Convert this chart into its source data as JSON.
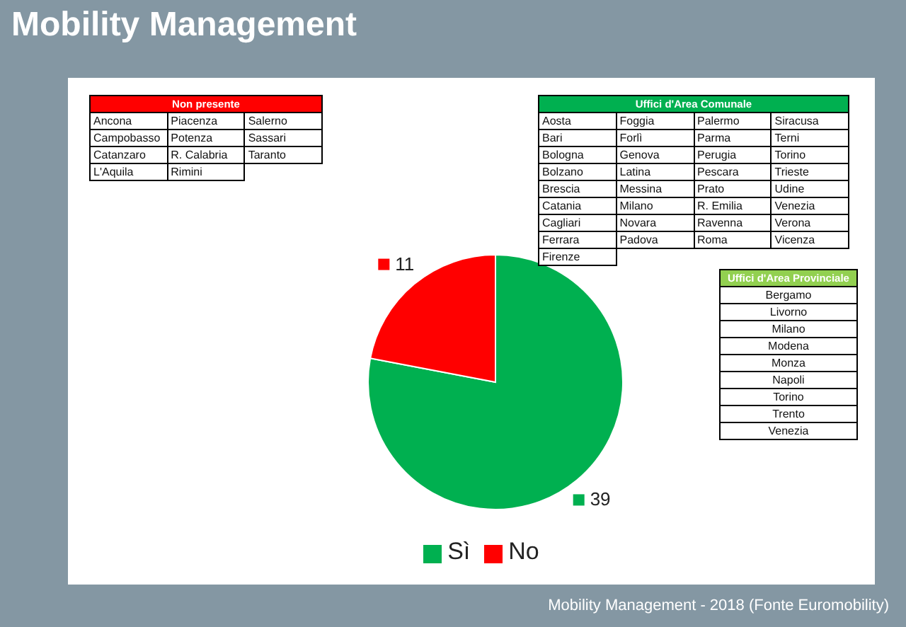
{
  "chart_data": [
    {
      "type": "pie",
      "title": "Mobility Management",
      "categories": [
        "Sì",
        "No"
      ],
      "values": [
        39,
        11
      ],
      "colors": [
        "#00b050",
        "#ff0000"
      ],
      "data_labels": true,
      "legend": "bottom",
      "annotations": [
        "Mobility Management - 2018 (Fonte Euromobility)"
      ]
    },
    {
      "type": "other",
      "title": "Non presente",
      "annotations": [
        "Ancona",
        "Piacenza",
        "Salerno",
        "Campobasso",
        "Potenza",
        "Sassari",
        "Catanzaro",
        "R. Calabria",
        "Taranto",
        "L'Aquila",
        "Rimini"
      ]
    },
    {
      "type": "other",
      "title": "Uffici d'Area Comunale",
      "annotations": [
        "Aosta",
        "Foggia",
        "Palermo",
        "Siracusa",
        "Bari",
        "Forlì",
        "Parma",
        "Terni",
        "Bologna",
        "Genova",
        "Perugia",
        "Torino",
        "Bolzano",
        "Latina",
        "Pescara",
        "Trieste",
        "Brescia",
        "Messina",
        "Prato",
        "Udine",
        "Catania",
        "Milano",
        "R. Emilia",
        "Venezia",
        "Cagliari",
        "Novara",
        "Ravenna",
        "Verona",
        "Ferrara",
        "Padova",
        "Roma",
        "Vicenza",
        "Firenze"
      ]
    },
    {
      "type": "other",
      "title": "Uffici d'Area Provinciale",
      "annotations": [
        "Bergamo",
        "Livorno",
        "Milano",
        "Modena",
        "Monza",
        "Napoli",
        "Torino",
        "Trento",
        "Venezia"
      ]
    }
  ]
}
